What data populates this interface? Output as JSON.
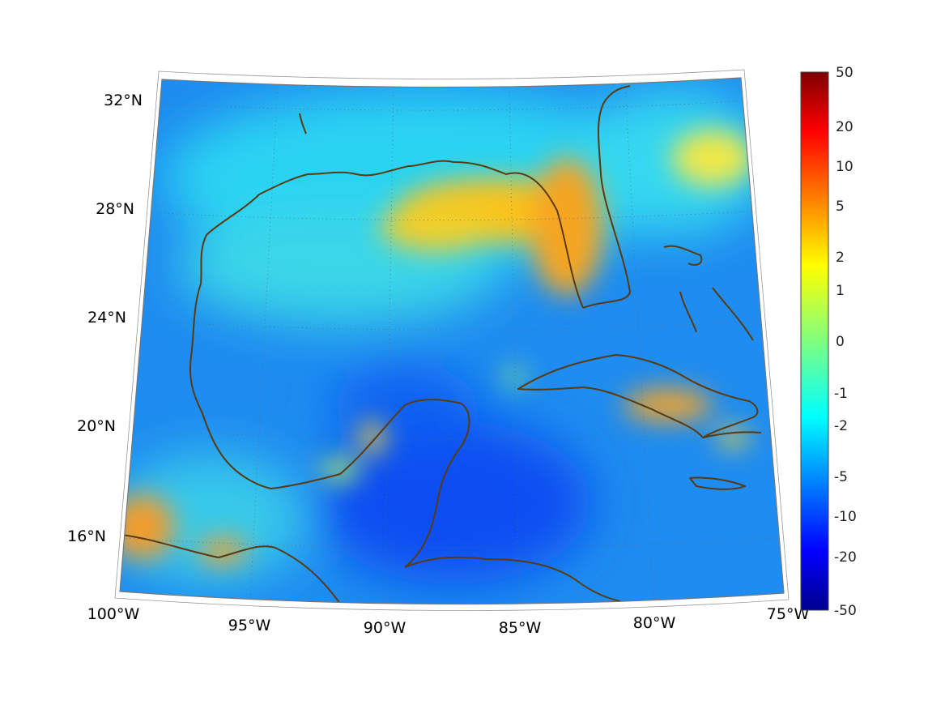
{
  "map": {
    "type": "field-map",
    "region": "Gulf of Mexico and Caribbean",
    "lon_range": [
      -100,
      -75
    ],
    "lat_range": [
      14,
      33
    ],
    "lat_ticks": [
      {
        "lat": 32,
        "label": "32°N"
      },
      {
        "lat": 28,
        "label": "28°N"
      },
      {
        "lat": 24,
        "label": "24°N"
      },
      {
        "lat": 20,
        "label": "20°N"
      },
      {
        "lat": 16,
        "label": "16°N"
      }
    ],
    "lon_ticks": [
      {
        "lon": -100,
        "label": "100°W"
      },
      {
        "lon": -95,
        "label": "95°W"
      },
      {
        "lon": -90,
        "label": "90°W"
      },
      {
        "lon": -85,
        "label": "85°W"
      },
      {
        "lon": -80,
        "label": "80°W"
      },
      {
        "lon": -75,
        "label": "75°W"
      }
    ],
    "coastline_color": "#5a3a12",
    "grid": "dotted"
  },
  "colorbar": {
    "colormap": "jet",
    "scale": "symmetric-log",
    "range": [
      -50,
      50
    ],
    "ticks": [
      "50",
      "20",
      "10",
      "5",
      "2",
      "1",
      "0",
      "-1",
      "-2",
      "-5",
      "-10",
      "-20",
      "-50"
    ]
  }
}
